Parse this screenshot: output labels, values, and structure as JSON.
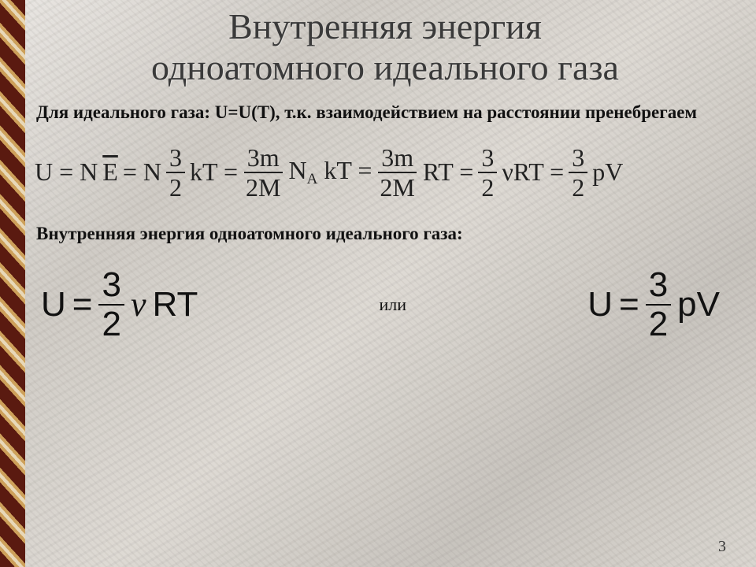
{
  "title_line1": "Внутренняя энергия",
  "title_line2": "одноатомного идеального газа",
  "intro_bold": "Для идеального газа: U=U(T), т.к. взаимодействием на расстоянии пренебрегаем",
  "eq_chain": {
    "p1": "U = N",
    "ebar": "E",
    "p2": " = N",
    "f1_num": "3",
    "f1_den": "2",
    "p3": "kT =",
    "f2_num": "3m",
    "f2_den": "2M",
    "p4a": "N",
    "p4_sub": "A",
    "p4b": "kT =",
    "f3_num": "3m",
    "f3_den": "2M",
    "p5": "RT =",
    "f4_num": "3",
    "f4_den": "2",
    "p6": "νRT =",
    "f5_num": "3",
    "f5_den": "2",
    "p7": "pV"
  },
  "subtitle": "Внутренняя энергия одноатомного идеального газа:",
  "eqA": {
    "lhs": "U",
    "eq": "=",
    "num": "3",
    "den": "2",
    "nu": "ν",
    "tail": "RT"
  },
  "or_text": "или",
  "eqB": {
    "lhs": "U",
    "eq": "=",
    "num": "3",
    "den": "2",
    "tail": "pV"
  },
  "page_number": "3",
  "colors": {
    "title": "#3a3a3a",
    "text": "#111111",
    "bg_base": "#dedad4"
  }
}
